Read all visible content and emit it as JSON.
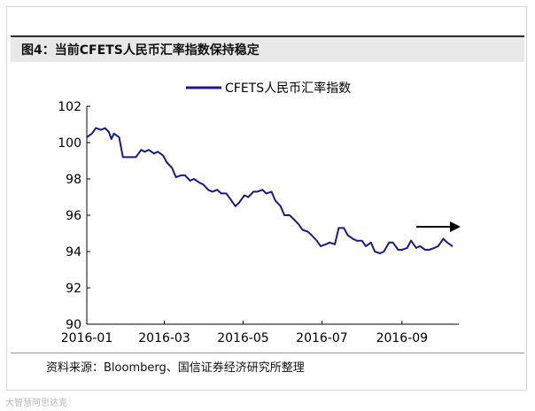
{
  "header": {
    "title": "图4：当前CFETS人民币汇率指数保持稳定"
  },
  "footer": {
    "source": "资料来源：Bloomberg、国信证券经济研究所整理"
  },
  "watermark": {
    "text": "大智慧阿思达克"
  },
  "chart_data": {
    "type": "line",
    "title": "",
    "xlabel": "",
    "ylabel": "",
    "ylim": [
      90,
      102
    ],
    "yticks": [
      90,
      92,
      94,
      96,
      98,
      100,
      102
    ],
    "xlim": [
      "2016-01-01",
      "2016-10-15"
    ],
    "xticks": [
      "2016-01",
      "2016-03",
      "2016-05",
      "2016-07",
      "2016-09"
    ],
    "grid": false,
    "legend": "top",
    "line_color": "#1a1a8c",
    "annotation": "arrow pointing right",
    "series": [
      {
        "name": "CFETS人民币汇率指数",
        "x": [
          "2016-01-01",
          "2016-01-05",
          "2016-01-08",
          "2016-01-12",
          "2016-01-15",
          "2016-01-18",
          "2016-01-20",
          "2016-01-22",
          "2016-01-26",
          "2016-01-29",
          "2016-02-01",
          "2016-02-05",
          "2016-02-08",
          "2016-02-12",
          "2016-02-15",
          "2016-02-18",
          "2016-02-22",
          "2016-02-25",
          "2016-02-29",
          "2016-03-03",
          "2016-03-07",
          "2016-03-10",
          "2016-03-14",
          "2016-03-17",
          "2016-03-21",
          "2016-03-24",
          "2016-03-28",
          "2016-03-31",
          "2016-04-04",
          "2016-04-07",
          "2016-04-11",
          "2016-04-14",
          "2016-04-18",
          "2016-04-21",
          "2016-04-25",
          "2016-04-28",
          "2016-05-02",
          "2016-05-05",
          "2016-05-09",
          "2016-05-12",
          "2016-05-16",
          "2016-05-19",
          "2016-05-23",
          "2016-05-26",
          "2016-05-30",
          "2016-06-02",
          "2016-06-06",
          "2016-06-09",
          "2016-06-13",
          "2016-06-16",
          "2016-06-20",
          "2016-06-23",
          "2016-06-27",
          "2016-06-30",
          "2016-07-04",
          "2016-07-07",
          "2016-07-11",
          "2016-07-14",
          "2016-07-18",
          "2016-07-21",
          "2016-07-25",
          "2016-07-28",
          "2016-08-01",
          "2016-08-04",
          "2016-08-08",
          "2016-08-11",
          "2016-08-15",
          "2016-08-18",
          "2016-08-22",
          "2016-08-25",
          "2016-08-29",
          "2016-09-01",
          "2016-09-05",
          "2016-09-08",
          "2016-09-12",
          "2016-09-15",
          "2016-09-19",
          "2016-09-22",
          "2016-09-26",
          "2016-09-29",
          "2016-10-03",
          "2016-10-06",
          "2016-10-10"
        ],
        "values": [
          100.3,
          100.5,
          100.8,
          100.7,
          100.8,
          100.6,
          100.2,
          100.5,
          100.3,
          99.2,
          99.2,
          99.2,
          99.2,
          99.6,
          99.5,
          99.6,
          99.4,
          99.5,
          99.3,
          98.9,
          98.6,
          98.1,
          98.2,
          98.2,
          97.9,
          98.0,
          97.8,
          97.7,
          97.4,
          97.3,
          97.4,
          97.2,
          97.2,
          96.9,
          96.5,
          96.7,
          97.1,
          97.0,
          97.3,
          97.3,
          97.4,
          97.2,
          97.3,
          96.8,
          96.5,
          96.0,
          96.0,
          95.8,
          95.5,
          95.2,
          95.1,
          94.9,
          94.6,
          94.3,
          94.4,
          94.5,
          94.4,
          95.3,
          95.3,
          94.9,
          94.7,
          94.6,
          94.6,
          94.3,
          94.5,
          94.0,
          93.9,
          94.0,
          94.5,
          94.5,
          94.1,
          94.1,
          94.2,
          94.6,
          94.2,
          94.3,
          94.1,
          94.1,
          94.2,
          94.3,
          94.7,
          94.5,
          94.3
        ]
      }
    ]
  }
}
